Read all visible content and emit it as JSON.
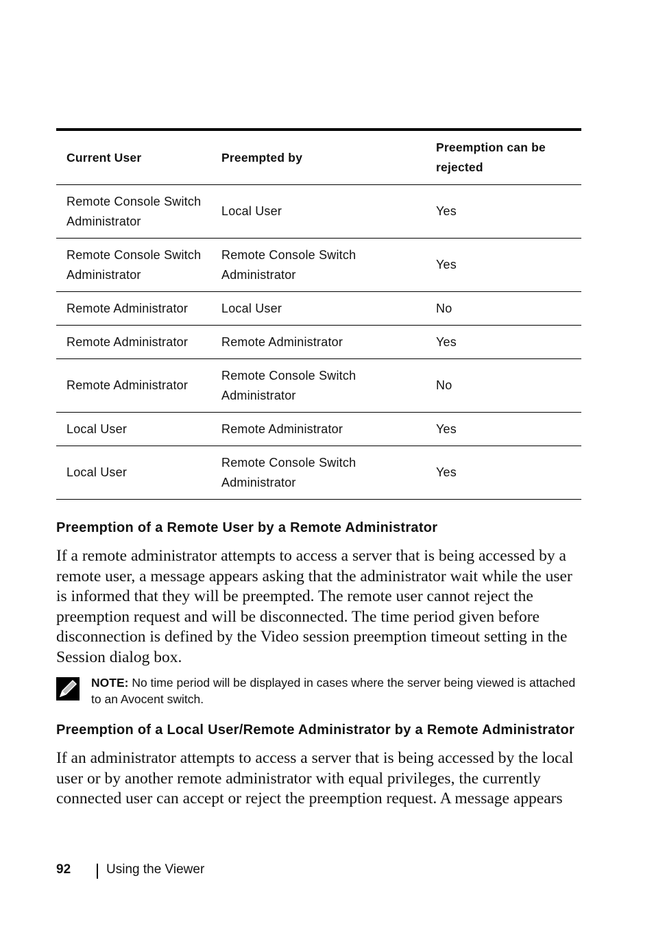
{
  "table": {
    "headers": [
      "Current User",
      "Preempted by",
      "Preemption can be rejected"
    ],
    "rows": [
      [
        "Remote Console Switch Administrator",
        "Local User",
        "Yes"
      ],
      [
        "Remote Console Switch Administrator",
        "Remote Console Switch Administrator",
        "Yes"
      ],
      [
        "Remote Administrator",
        "Local User",
        "No"
      ],
      [
        "Remote Administrator",
        "Remote Administrator",
        "Yes"
      ],
      [
        "Remote Administrator",
        "Remote Console Switch Administrator",
        "No"
      ],
      [
        "Local User",
        "Remote Administrator",
        "Yes"
      ],
      [
        "Local User",
        "Remote Console Switch Administrator",
        "Yes"
      ]
    ]
  },
  "section1": {
    "heading": "Preemption of a Remote User by a Remote Administrator",
    "body": "If a remote administrator attempts to access a server that is being accessed by a remote user, a message appears asking that the administrator wait while the user is informed that they will be preempted. The remote user cannot reject the preemption request and will be disconnected. The time period given before disconnection is defined by the Video session preemption timeout setting in the Session dialog box."
  },
  "note": {
    "icon": "pencil-note-icon",
    "label": "NOTE:",
    "text": " No time period will be displayed in cases where the server being viewed is attached to an Avocent switch."
  },
  "section2": {
    "heading": "Preemption of a Local User/Remote Administrator by a Remote Administrator",
    "body": "If an administrator attempts to access a server that is being accessed by the local user or by another remote administrator with equal privileges, the currently connected user can accept or reject the preemption request. A message appears"
  },
  "footer": {
    "page_number": "92",
    "section": "Using the Viewer"
  }
}
